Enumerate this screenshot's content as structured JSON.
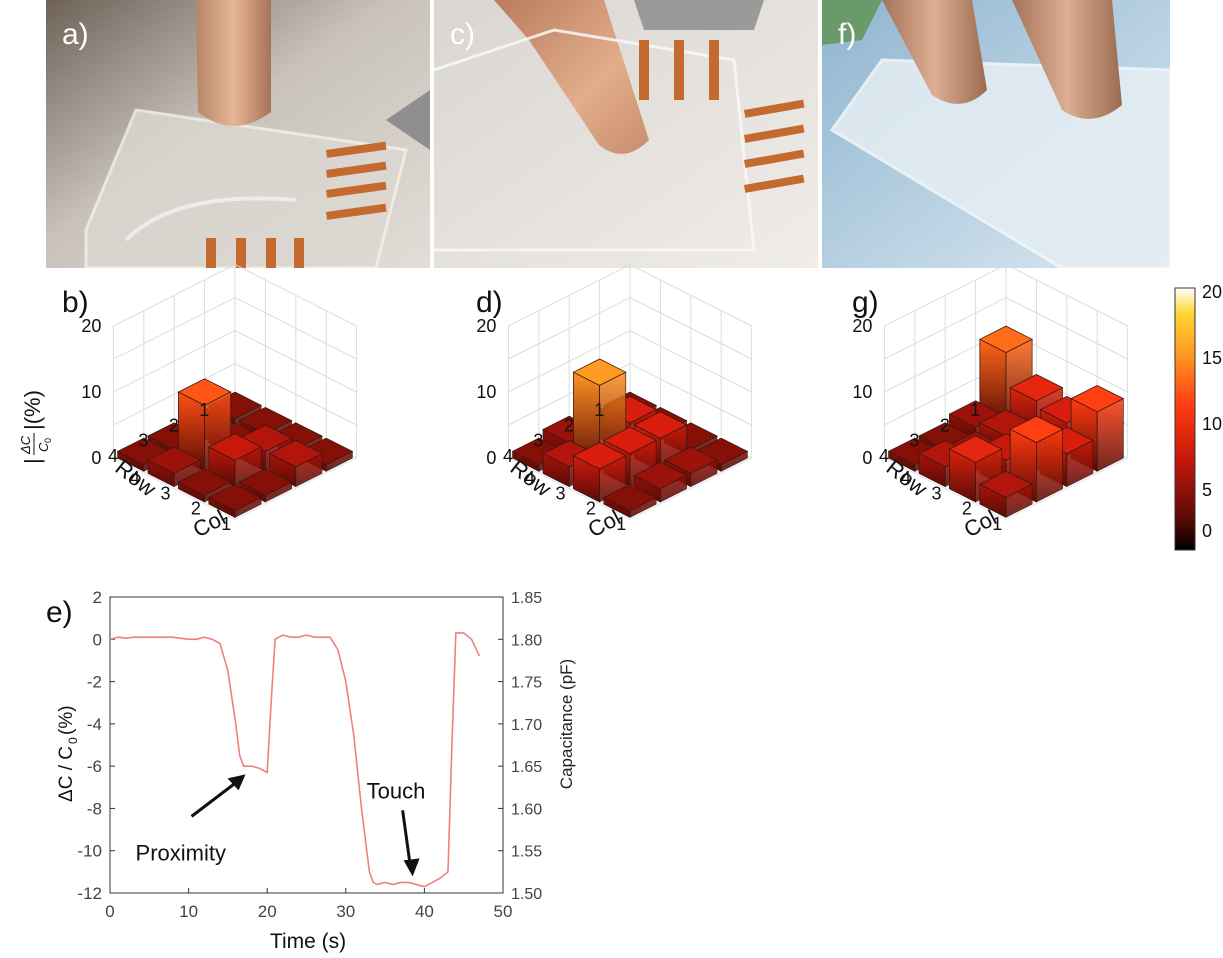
{
  "figure": {
    "photos": [
      {
        "label": "a)"
      },
      {
        "label": "c)"
      },
      {
        "label": "f)"
      }
    ],
    "bar_panels": [
      {
        "label": "b)"
      },
      {
        "label": "d)"
      },
      {
        "label": "g)"
      }
    ],
    "line_panel": {
      "label": "e)"
    },
    "bar_ylabel_prefix": "|",
    "bar_ylabel_suffix": "|(%)",
    "bar_ylabel_num": "ΔC",
    "bar_ylabel_den": "C",
    "bar_ylabel_den_sub": "0",
    "row_label": "Row",
    "col_label": "Col",
    "colorbar_ticks": [
      "20",
      "15",
      "10",
      "5",
      "0"
    ],
    "colors": {
      "bar_dark": "#5a0a06",
      "bar_mid": "#e5260c",
      "bar_hot": "#f5a623",
      "bar_peak": "#ffe24a",
      "line": "#f08080"
    }
  },
  "chart_data": [
    {
      "type": "bar3d",
      "rows": [
        "1",
        "2",
        "3",
        "4"
      ],
      "cols": [
        "1",
        "2",
        "3",
        "4"
      ],
      "zlim": [
        0,
        20
      ],
      "zticks": [
        "0",
        "10",
        "20"
      ],
      "values": [
        [
          1,
          1,
          1,
          1
        ],
        [
          1,
          1,
          3,
          3
        ],
        [
          1,
          10,
          4,
          1
        ],
        [
          1,
          2,
          1,
          1
        ]
      ]
    },
    {
      "type": "bar3d",
      "rows": [
        "1",
        "2",
        "3",
        "4"
      ],
      "cols": [
        "1",
        "2",
        "3",
        "4"
      ],
      "zlim": [
        0,
        20
      ],
      "zticks": [
        "0",
        "10",
        "20"
      ],
      "values": [
        [
          1,
          1,
          1,
          1
        ],
        [
          1,
          5,
          5,
          2
        ],
        [
          2,
          13,
          5,
          2
        ],
        [
          1,
          3,
          5,
          1
        ]
      ]
    },
    {
      "type": "bar3d",
      "rows": [
        "1",
        "2",
        "3",
        "4"
      ],
      "cols": [
        "1",
        "2",
        "3",
        "4"
      ],
      "zlim": [
        0,
        20
      ],
      "zticks": [
        "0",
        "10",
        "20"
      ],
      "values": [
        [
          11,
          6,
          5,
          9
        ],
        [
          2,
          3,
          4,
          5
        ],
        [
          1,
          2,
          4,
          9
        ],
        [
          1,
          3,
          6,
          3
        ]
      ]
    },
    {
      "type": "line",
      "xlabel": "Time (s)",
      "ylabel_left_prefix": "ΔC / C",
      "ylabel_left_sub": "0",
      "ylabel_left_suffix": "(%)",
      "ylabel_right": "Capacitance (pF)",
      "xlim": [
        0,
        50
      ],
      "ylim": [
        -12,
        2
      ],
      "y2lim": [
        1.5,
        1.85
      ],
      "xticks": [
        "0",
        "10",
        "20",
        "30",
        "40",
        "50"
      ],
      "yticks": [
        "2",
        "0",
        "-2",
        "-4",
        "-6",
        "-8",
        "-10",
        "-12"
      ],
      "y2ticks": [
        "1.85",
        "1.80",
        "1.75",
        "1.70",
        "1.65",
        "1.60",
        "1.55",
        "1.50"
      ],
      "x": [
        0,
        1,
        2,
        3,
        5,
        8,
        10,
        11,
        12,
        13,
        14,
        15,
        16,
        16.5,
        17,
        17.5,
        18,
        19,
        20,
        20.5,
        21,
        22,
        23,
        24,
        25,
        26,
        27,
        28,
        29,
        30,
        31,
        32,
        33,
        33.5,
        34,
        35,
        36,
        37,
        38,
        39,
        40,
        41,
        42,
        43,
        43.5,
        44,
        45,
        46,
        47
      ],
      "y": [
        0,
        0.1,
        0.05,
        0.1,
        0.1,
        0.1,
        0,
        0,
        0.1,
        0,
        -0.2,
        -1.5,
        -4,
        -5.5,
        -6,
        -6.0,
        -6.0,
        -6.1,
        -6.3,
        -3,
        0,
        0.2,
        0.1,
        0.1,
        0.2,
        0.1,
        0.1,
        0.1,
        -0.5,
        -2,
        -4.5,
        -8,
        -11,
        -11.5,
        -11.6,
        -11.5,
        -11.6,
        -11.5,
        -11.5,
        -11.6,
        -11.7,
        -11.5,
        -11.3,
        -11,
        -5,
        0.3,
        0.3,
        0,
        -0.8
      ],
      "annotations": [
        {
          "text": "Proximity",
          "x": 17.5,
          "y": -6.2
        },
        {
          "text": "Touch",
          "x": 38.5,
          "y": -11.4
        }
      ]
    }
  ]
}
